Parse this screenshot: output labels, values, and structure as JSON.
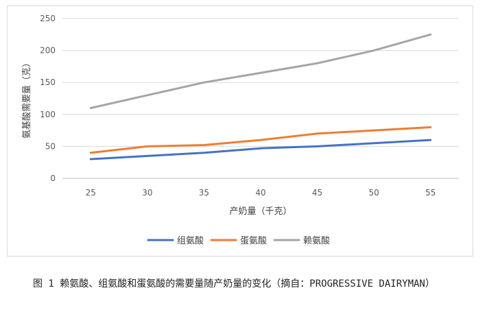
{
  "chart_data": {
    "type": "line",
    "x": [
      25,
      30,
      35,
      40,
      45,
      50,
      55
    ],
    "xlabel": "产奶量（千克）",
    "ylabel": "氨基酸需要量（克）",
    "ylim": [
      0,
      250
    ],
    "yticks": [
      0,
      50,
      100,
      150,
      200,
      250
    ],
    "grid": "horizontal",
    "legend": "bottom",
    "series": [
      {
        "name": "组氨酸",
        "color": "#4472C4",
        "values": [
          30,
          35,
          40,
          47,
          50,
          55,
          60
        ]
      },
      {
        "name": "蛋氨酸",
        "color": "#ED7D31",
        "values": [
          40,
          50,
          52,
          60,
          70,
          75,
          80
        ]
      },
      {
        "name": "赖氨酸",
        "color": "#A5A5A5",
        "values": [
          110,
          130,
          150,
          165,
          180,
          200,
          225
        ]
      }
    ]
  },
  "caption": "图 1 赖氨酸、组氨酸和蛋氨酸的需要量随产奶量的变化（摘自：PROGRESSIVE DAIRYMAN）"
}
